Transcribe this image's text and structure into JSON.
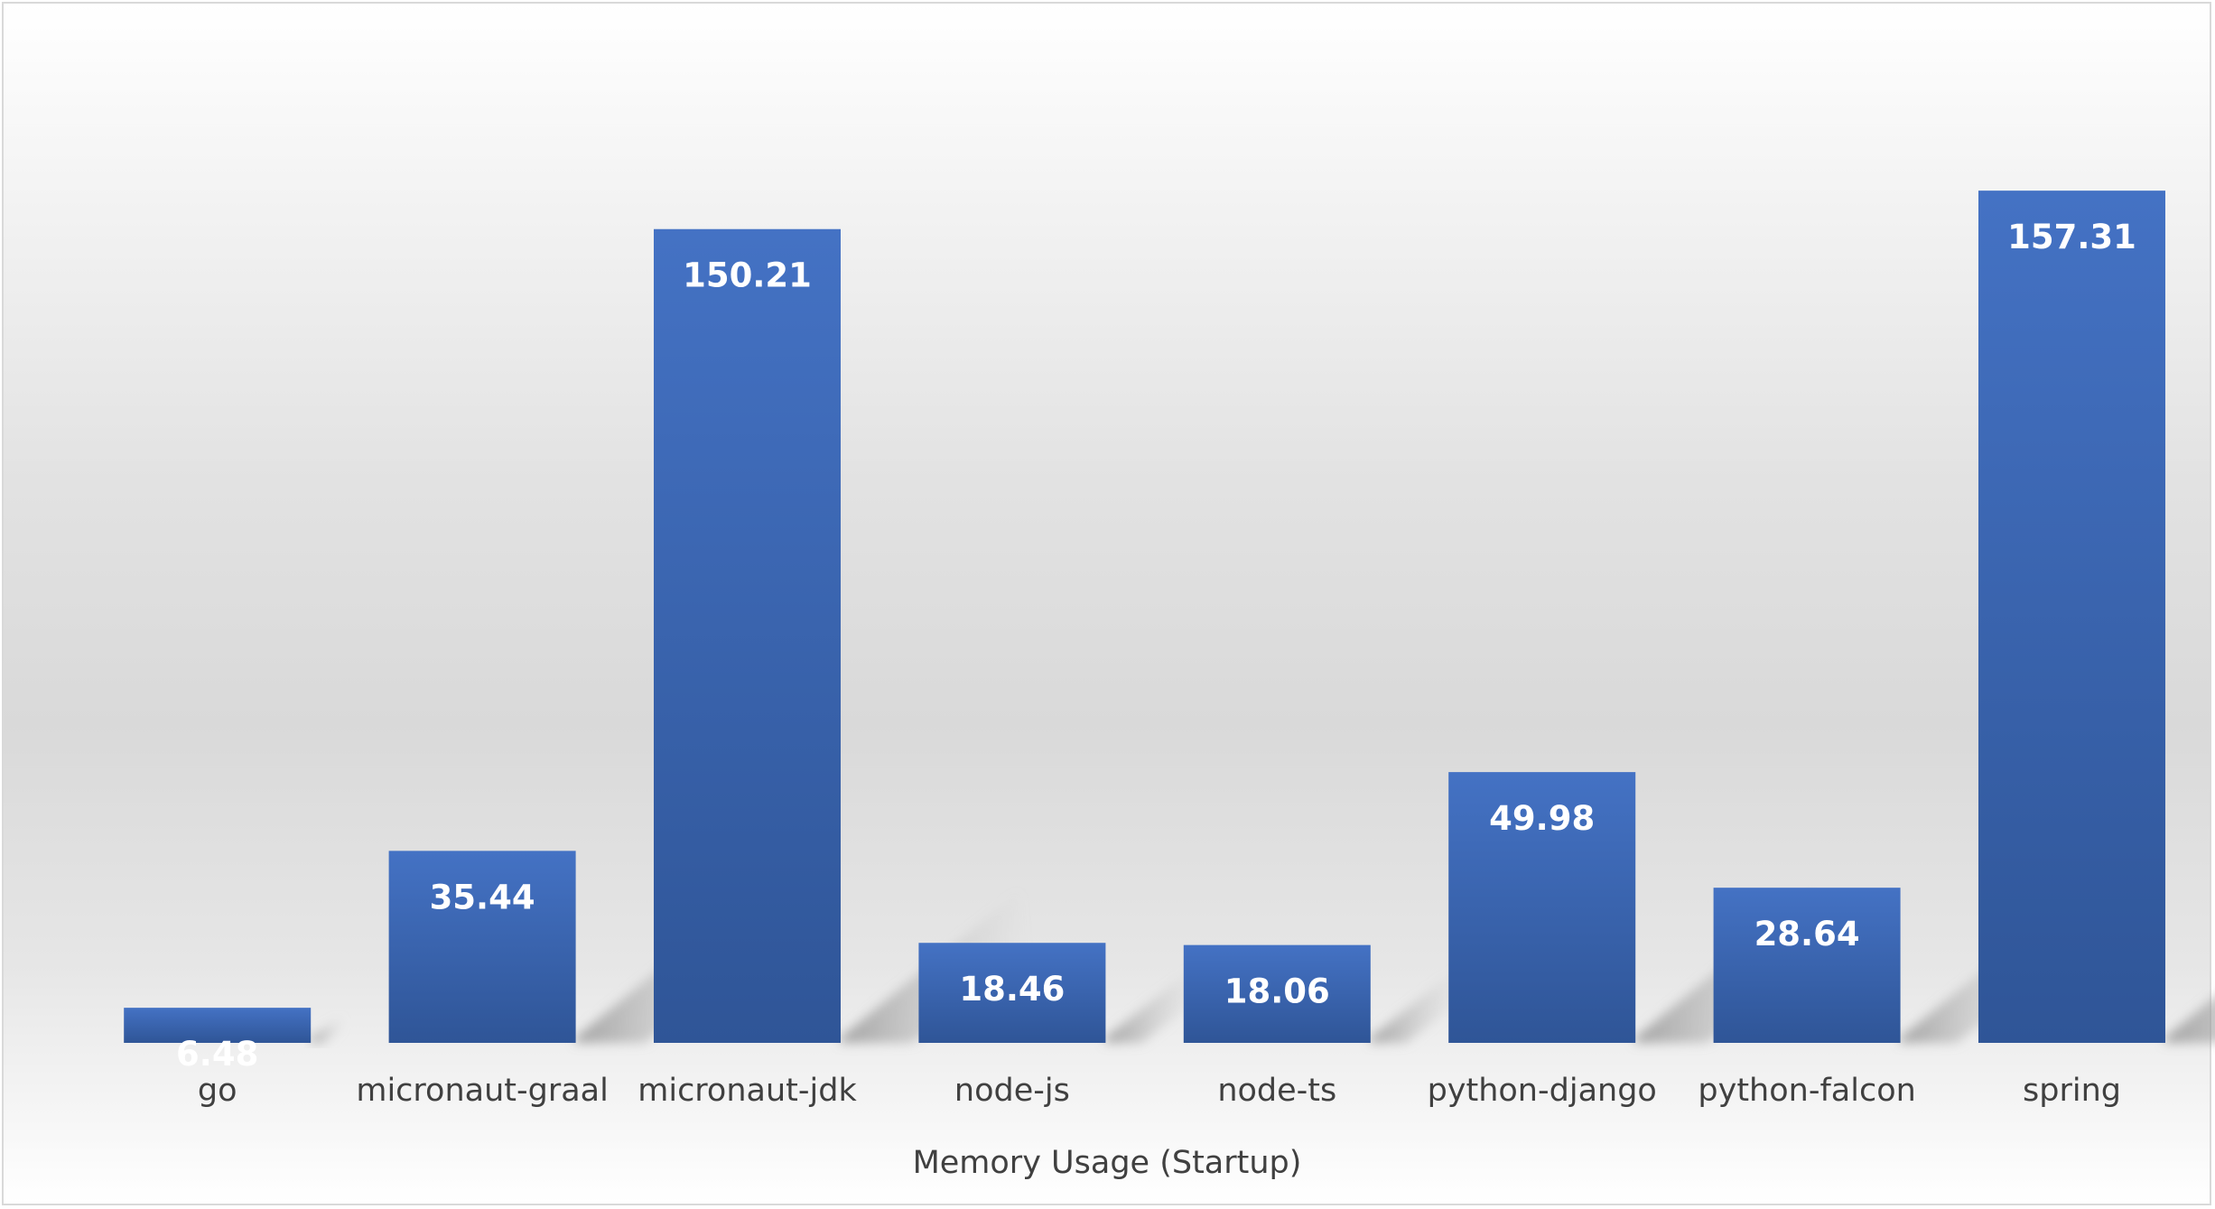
{
  "chart_data": {
    "type": "bar",
    "categories": [
      "go",
      "micronaut-graal",
      "micronaut-jdk",
      "node-js",
      "node-ts",
      "python-django",
      "python-falcon",
      "spring"
    ],
    "values": [
      6.48,
      35.44,
      150.21,
      18.46,
      18.06,
      49.98,
      28.64,
      157.31
    ],
    "data_labels": [
      "6.48",
      "35.44",
      "150.21",
      "18.46",
      "18.06",
      "49.98",
      "28.64",
      "157.31"
    ],
    "xlabel": "Memory Usage (Startup)",
    "ylabel": "",
    "ylim": [
      0,
      180
    ],
    "grid": false,
    "legend": "none",
    "colors": {
      "bar_top": "#4472c4",
      "bar_bottom": "#2f5597",
      "text": "#404040",
      "label": "#ffffff"
    }
  }
}
